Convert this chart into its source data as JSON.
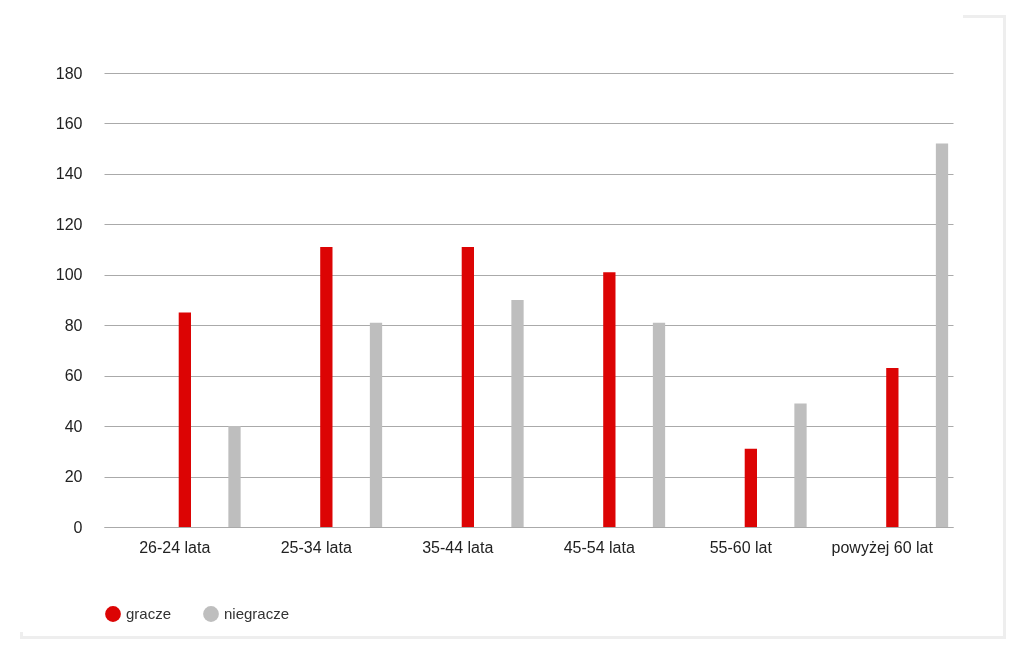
{
  "chart_data": {
    "type": "bar",
    "categories": [
      "26-24 lata",
      "25-34 lata",
      "35-44 lata",
      "45-54 lata",
      "55-60 lat",
      "powyżej 60 lat"
    ],
    "series": [
      {
        "name": "gracze",
        "color": "#dc0404",
        "values": [
          85,
          111,
          111,
          101,
          31,
          63
        ]
      },
      {
        "name": "niegracze",
        "color": "#bebebe",
        "values": [
          40,
          81,
          90,
          81,
          49,
          152
        ]
      }
    ],
    "ylim": [
      0,
      180
    ],
    "yticks": [
      0,
      20,
      40,
      60,
      80,
      100,
      120,
      140,
      160,
      180
    ],
    "grid": "y",
    "legend": "bottom",
    "marker": "circle"
  }
}
